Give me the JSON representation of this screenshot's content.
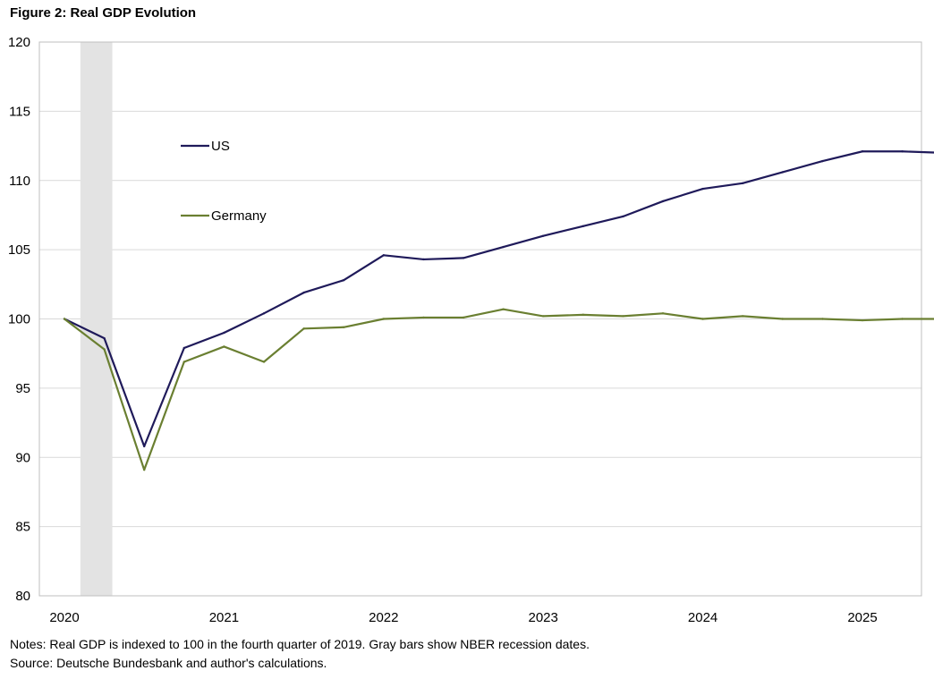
{
  "figure": {
    "title": "Figure 2: Real GDP Evolution",
    "notes": "Notes: Real GDP is indexed to 100 in the fourth quarter of 2019.  Gray bars show NBER recession dates.",
    "source": "Source: Deutsche Bundesbank and author's calculations."
  },
  "chart_data": {
    "type": "line",
    "title": "Figure 2: Real GDP Evolution",
    "xlabel": "",
    "ylabel": "",
    "ylim": [
      80,
      120
    ],
    "yticks": [
      80,
      85,
      90,
      95,
      100,
      105,
      110,
      115,
      120
    ],
    "x_tick_labels": [
      "2020",
      "2021",
      "2022",
      "2023",
      "2024",
      "2025"
    ],
    "xlim": [
      0,
      22
    ],
    "x": [
      0,
      1,
      2,
      3,
      4,
      5,
      6,
      7,
      8,
      9,
      10,
      11,
      12,
      13,
      14,
      15,
      16,
      17,
      18,
      19,
      20,
      21,
      22
    ],
    "series": [
      {
        "name": "US",
        "color": "#1f1a5a",
        "values": [
          100.0,
          98.6,
          90.8,
          97.9,
          99.0,
          100.4,
          101.9,
          102.8,
          104.6,
          104.3,
          104.4,
          105.2,
          106.0,
          106.7,
          107.4,
          108.5,
          109.4,
          109.8,
          110.6,
          111.4,
          112.1,
          112.1,
          112.0
        ]
      },
      {
        "name": "Germany",
        "color": "#6a7f31",
        "values": [
          100.0,
          97.8,
          89.1,
          96.9,
          98.0,
          96.9,
          99.3,
          99.4,
          100.0,
          100.1,
          100.1,
          100.7,
          100.2,
          100.3,
          100.2,
          100.4,
          100.0,
          100.2,
          100.0,
          100.0,
          99.9,
          100.0,
          100.0
        ]
      }
    ],
    "recession_shading": [
      {
        "start": 0.4,
        "end": 1.2,
        "color": "#e3e3e3"
      }
    ],
    "legend": {
      "position": "upper-left inside plot"
    },
    "grid": true
  }
}
